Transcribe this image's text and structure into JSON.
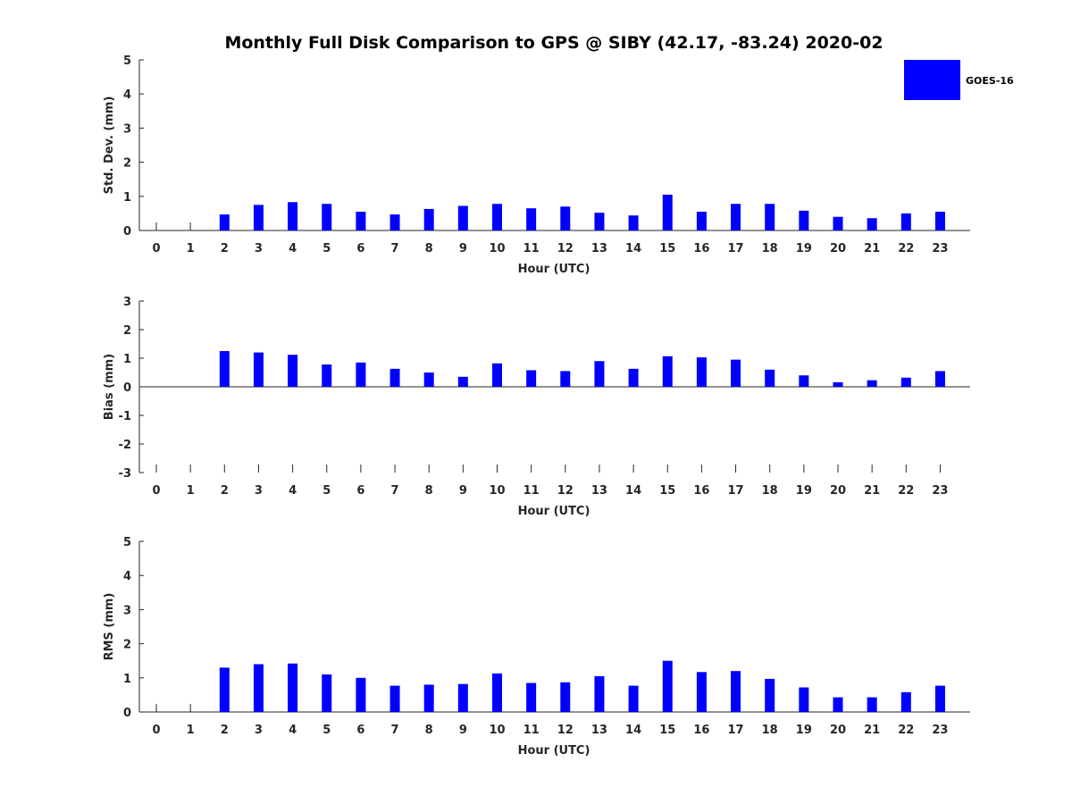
{
  "chart_data": {
    "title": "Monthly Full Disk Comparison to GPS @ SIBY (42.17, -83.24) 2020-02",
    "legend": {
      "label": "GOES-16",
      "color": "#0000ff",
      "placement": "top-right"
    },
    "categories": [
      "0",
      "1",
      "2",
      "3",
      "4",
      "5",
      "6",
      "7",
      "8",
      "9",
      "10",
      "11",
      "12",
      "13",
      "14",
      "15",
      "16",
      "17",
      "18",
      "19",
      "20",
      "21",
      "22",
      "23"
    ],
    "subplots": [
      {
        "type": "bar",
        "name": "std-dev",
        "xlabel": "Hour (UTC)",
        "ylabel": "Std. Dev. (mm)",
        "ylim": [
          0,
          5
        ],
        "yticks": [
          "0",
          "1",
          "2",
          "3",
          "4",
          "5"
        ],
        "series": [
          {
            "name": "GOES-16",
            "values": [
              null,
              null,
              0.47,
              0.75,
              0.83,
              0.78,
              0.55,
              0.47,
              0.63,
              0.72,
              0.78,
              0.65,
              0.7,
              0.52,
              0.44,
              1.05,
              0.55,
              0.78,
              0.78,
              0.58,
              0.4,
              0.36,
              0.5,
              0.55
            ]
          }
        ]
      },
      {
        "type": "bar",
        "name": "bias",
        "xlabel": "Hour (UTC)",
        "ylabel": "Bias (mm)",
        "ylim": [
          -3,
          3
        ],
        "yticks": [
          "-3",
          "-2",
          "-1",
          "0",
          "1",
          "2",
          "3"
        ],
        "series": [
          {
            "name": "GOES-16",
            "values": [
              null,
              null,
              1.25,
              1.2,
              1.12,
              0.78,
              0.85,
              0.63,
              0.5,
              0.35,
              0.82,
              0.58,
              0.55,
              0.9,
              0.63,
              1.07,
              1.03,
              0.95,
              0.6,
              0.4,
              0.16,
              0.23,
              0.32,
              0.55
            ]
          }
        ]
      },
      {
        "type": "bar",
        "name": "rms",
        "xlabel": "Hour (UTC)",
        "ylabel": "RMS (mm)",
        "ylim": [
          0,
          5
        ],
        "yticks": [
          "0",
          "1",
          "2",
          "3",
          "4",
          "5"
        ],
        "series": [
          {
            "name": "GOES-16",
            "values": [
              null,
              null,
              1.3,
              1.4,
              1.42,
              1.1,
              1.0,
              0.77,
              0.8,
              0.82,
              1.13,
              0.85,
              0.87,
              1.05,
              0.77,
              1.5,
              1.17,
              1.2,
              0.97,
              0.72,
              0.43,
              0.43,
              0.58,
              0.77
            ]
          }
        ]
      }
    ]
  }
}
